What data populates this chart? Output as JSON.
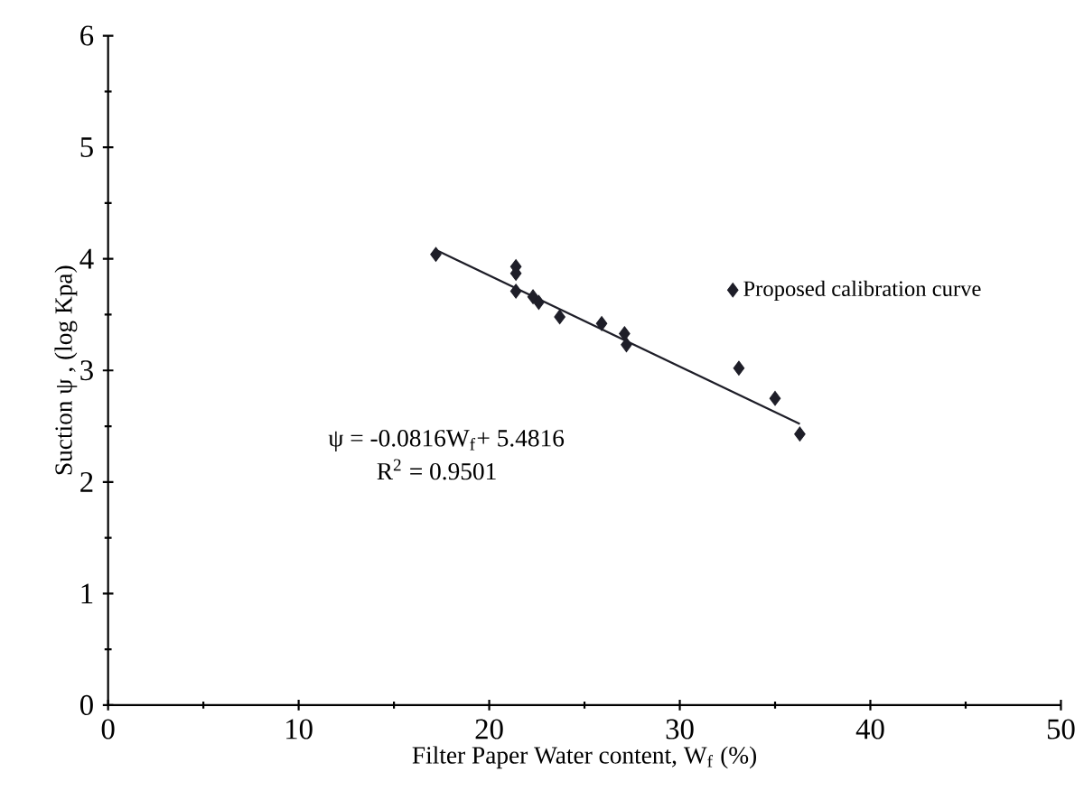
{
  "chart_data": {
    "type": "scatter",
    "xlabel": "Filter Paper Water content, W$_{f}$ (%)",
    "ylabel": "Suction ψ , (log Kpa)",
    "xlim": [
      0,
      50
    ],
    "ylim": [
      0,
      6
    ],
    "xticks": [
      0,
      10,
      20,
      30,
      40,
      50
    ],
    "yticks": [
      0,
      1,
      2,
      3,
      4,
      5,
      6
    ],
    "grid": false,
    "legend": "top right",
    "marker": "diamond",
    "series": [
      {
        "name": "Proposed calibration curve",
        "color": "#1e1e28",
        "x": [
          17.2,
          21.4,
          21.4,
          21.4,
          22.3,
          22.6,
          23.7,
          25.9,
          27.1,
          27.2,
          33.1,
          35.0,
          36.3
        ],
        "values": [
          4.04,
          3.93,
          3.87,
          3.71,
          3.66,
          3.61,
          3.48,
          3.42,
          3.33,
          3.23,
          3.02,
          2.75,
          2.43
        ]
      },
      {
        "type": "line",
        "marker": "none",
        "color": "#1e1e28",
        "x": [
          17.2,
          36.3
        ],
        "values": [
          4.08,
          2.52
        ]
      }
    ],
    "annotations": [
      "ψ = -0.0816W$_{f}$+ 5.4816",
      "R$^{2}$ = 0.9501"
    ]
  }
}
